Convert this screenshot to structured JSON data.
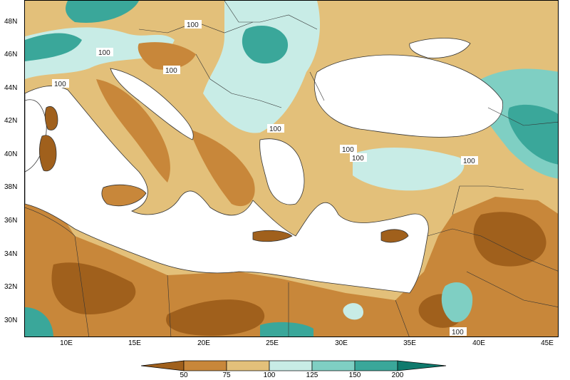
{
  "map": {
    "lat_labels": [
      "48N",
      "46N",
      "44N",
      "42N",
      "40N",
      "38N",
      "36N",
      "34N",
      "32N",
      "30N"
    ],
    "lon_labels": [
      "10E",
      "15E",
      "20E",
      "25E",
      "30E",
      "35E",
      "40E",
      "45E"
    ],
    "contour_value": "100"
  },
  "colorbar": {
    "ticks": [
      "50",
      "75",
      "100",
      "125",
      "150",
      "200"
    ],
    "colors": [
      "#a0601c",
      "#c8873a",
      "#e3c07a",
      "#c8ece6",
      "#7fcfc3",
      "#3aa79a",
      "#0f7a6d"
    ]
  },
  "palette": {
    "sea": "#ffffff",
    "dark_brown": "#a0601c",
    "brown": "#c8873a",
    "tan": "#e3c07a",
    "light_cyan": "#c8ece6",
    "teal": "#7fcfc3",
    "dark_teal": "#3aa79a"
  }
}
